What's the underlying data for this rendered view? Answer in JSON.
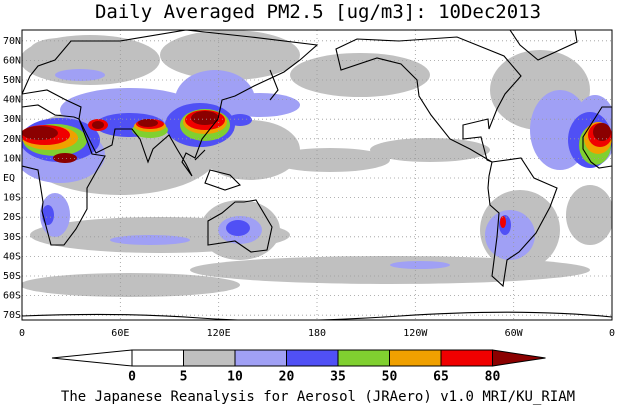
{
  "title": "Daily Averaged PM2.5 [ug/m3]: 10Dec2013",
  "map": {
    "lat_labels": [
      "70N",
      "60N",
      "50N",
      "40N",
      "30N",
      "20N",
      "10N",
      "EQ",
      "10S",
      "20S",
      "30S",
      "40S",
      "50S",
      "60S",
      "70S"
    ],
    "lon_labels": [
      "0",
      "60E",
      "120E",
      "180",
      "120W",
      "60W",
      "0"
    ]
  },
  "colorbar": {
    "levels": [
      0,
      5,
      10,
      20,
      35,
      50,
      65,
      80
    ],
    "colors": [
      "#ffffff",
      "#ffffff",
      "#c0c0c0",
      "#a0a0f5",
      "#5050f5",
      "#80d030",
      "#f0a000",
      "#f00000",
      "#8b0000"
    ]
  },
  "footer": "The Japanese Reanalysis for Aerosol (JRAero) v1.0 MRI/KU_RIAM"
}
